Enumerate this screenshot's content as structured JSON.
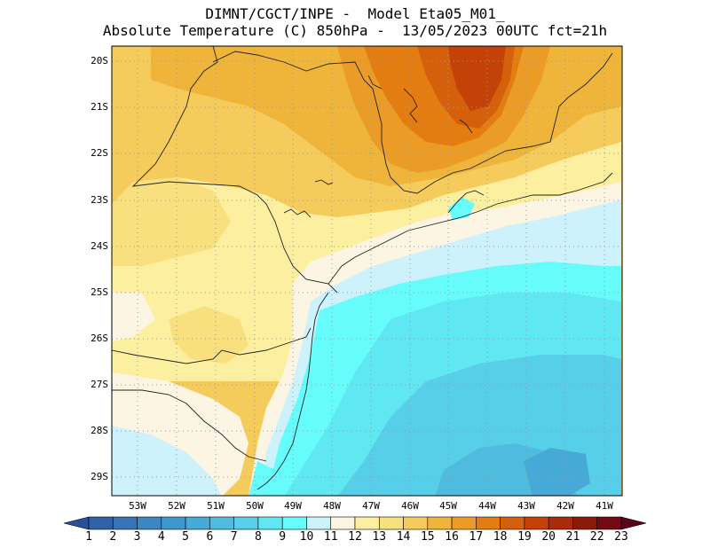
{
  "title": {
    "line1": "DIMNT/CGCT/INPE -  Model Eta05_M01_",
    "line2": "Absolute Temperature (C) 850hPa -  13/05/2023 00UTC fct=21h"
  },
  "map": {
    "lat_labels": [
      "20S",
      "21S",
      "22S",
      "23S",
      "24S",
      "25S",
      "26S",
      "27S",
      "28S",
      "29S"
    ],
    "lon_labels": [
      "53W",
      "52W",
      "51W",
      "50W",
      "49W",
      "48W",
      "47W",
      "46W",
      "45W",
      "44W",
      "43W",
      "42W",
      "41W"
    ],
    "grid": "dotted"
  },
  "colorbar": {
    "labels": [
      "1",
      "2",
      "3",
      "4",
      "5",
      "6",
      "7",
      "8",
      "9",
      "10",
      "11",
      "12",
      "13",
      "14",
      "15",
      "16",
      "17",
      "18",
      "19",
      "20",
      "21",
      "22",
      "23"
    ],
    "colors": [
      "#2a4f9b",
      "#2f62a8",
      "#3674b5",
      "#3d86c2",
      "#3f98cc",
      "#46a9d6",
      "#4fbcdf",
      "#58cfe8",
      "#5fe8f2",
      "#66fcfc",
      "#cdf2fb",
      "#fdf5e4",
      "#fcf0a0",
      "#f9e07e",
      "#f5cc5c",
      "#efb43a",
      "#eb9c26",
      "#e37d12",
      "#d5600b",
      "#c44208",
      "#a92b0a",
      "#8c1a0a",
      "#740a14",
      "#5a0418"
    ]
  }
}
